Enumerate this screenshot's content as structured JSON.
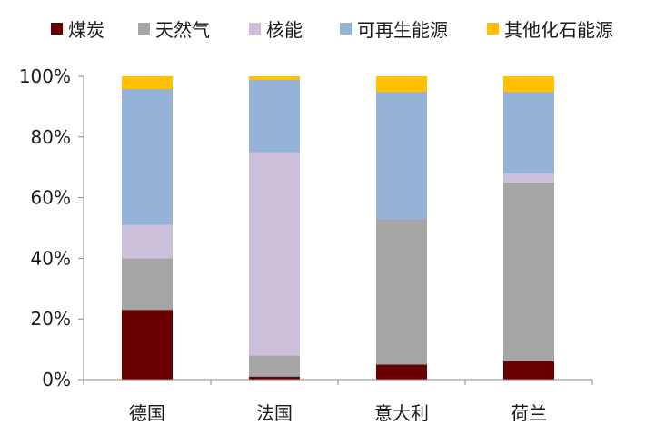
{
  "chart_data": {
    "type": "bar",
    "stacked": true,
    "categories": [
      "德国",
      "法国",
      "意大利",
      "荷兰"
    ],
    "series": [
      {
        "name": "煤炭",
        "color": "#6b0000",
        "values": [
          23,
          1,
          5,
          6
        ]
      },
      {
        "name": "天然气",
        "color": "#a6a6a6",
        "values": [
          17,
          7,
          48,
          59
        ]
      },
      {
        "name": "核能",
        "color": "#ccc0da",
        "values": [
          11,
          67,
          0,
          3
        ]
      },
      {
        "name": "可再生能源",
        "color": "#95b3d7",
        "values": [
          45,
          24,
          42,
          27
        ]
      },
      {
        "name": "其他化石能源",
        "color": "#ffc000",
        "values": [
          4,
          1,
          5,
          5
        ]
      }
    ],
    "ylim": [
      0,
      100
    ],
    "yticks": [
      "0%",
      "20%",
      "40%",
      "60%",
      "80%",
      "100%"
    ],
    "ytick_values": [
      0,
      20,
      40,
      60,
      80,
      100
    ],
    "legend_position": "top",
    "grid": false
  }
}
